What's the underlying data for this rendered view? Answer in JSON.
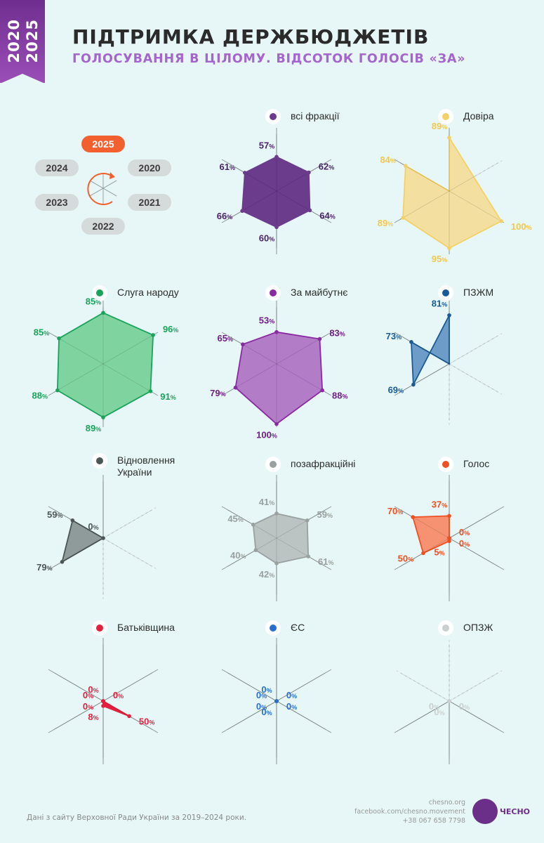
{
  "header": {
    "year_start": "2020",
    "year_end": "2025",
    "title": "ПІДТРИМКА ДЕРЖБЮДЖЕТІВ",
    "subtitle": "ГОЛОСУВАННЯ В ЦІЛОМУ. ВІДСОТОК ГОЛОСІВ «ЗА»"
  },
  "legend": {
    "years": [
      {
        "year": "2025",
        "highlight": true
      },
      {
        "year": "2020",
        "highlight": false
      },
      {
        "year": "2021",
        "highlight": false
      },
      {
        "year": "2022",
        "highlight": false
      },
      {
        "year": "2023",
        "highlight": false
      },
      {
        "year": "2024",
        "highlight": false
      }
    ],
    "highlight_color": "#f2602f",
    "pill_color": "#d5dada"
  },
  "chart_data": [
    {
      "type": "radar",
      "name": "всі фракції",
      "icon": "parliament-icon",
      "color": "#6b3b8c",
      "fill": "#6b3b8c",
      "fill_opacity": 1,
      "label_color": "#4a2468",
      "axes": [
        "2025",
        "2020",
        "2021",
        "2022",
        "2023",
        "2024"
      ],
      "values": [
        57,
        62,
        64,
        60,
        66,
        61
      ],
      "max": 100,
      "missing": []
    },
    {
      "type": "radar",
      "name": "Довіра",
      "icon": "feather-icon",
      "color": "#f4d166",
      "fill": "#f3dfa0",
      "fill_opacity": 1,
      "label_color": "#f0c850",
      "axes": [
        "2025",
        "2020",
        "2021",
        "2022",
        "2023",
        "2024"
      ],
      "values": [
        89,
        0,
        100,
        95,
        89,
        84
      ],
      "max": 100,
      "missing": [
        1
      ]
    },
    {
      "type": "radar",
      "name": "Слуга народу",
      "icon": "sluha-icon",
      "color": "#1aa35a",
      "fill": "#7fd39f",
      "fill_opacity": 1,
      "label_color": "#1aa35a",
      "axes": [
        "2025",
        "2020",
        "2021",
        "2022",
        "2023",
        "2024"
      ],
      "values": [
        85,
        96,
        91,
        89,
        88,
        85
      ],
      "max": 100,
      "missing": []
    },
    {
      "type": "radar",
      "name": "За майбутнє",
      "icon": "za-maibutnie-icon",
      "color": "#8a2aa3",
      "fill": "#b27cc7",
      "fill_opacity": 1,
      "label_color": "#6e1f86",
      "axes": [
        "2025",
        "2020",
        "2021",
        "2022",
        "2023",
        "2024"
      ],
      "values": [
        53,
        83,
        88,
        100,
        79,
        65
      ],
      "max": 100,
      "missing": []
    },
    {
      "type": "radar",
      "name": "ПЗЖМ",
      "icon": "pzhm-icon",
      "color": "#1a5a96",
      "fill": "#6e9cc9",
      "fill_opacity": 1,
      "label_color": "#1a5a96",
      "axes": [
        "2025",
        "2020",
        "2021",
        "2022",
        "2023",
        "2024"
      ],
      "values": [
        81,
        0,
        0,
        0,
        69,
        73
      ],
      "max": 100,
      "missing": [
        1,
        2,
        3
      ]
    },
    {
      "type": "radar",
      "name": "Відновлення України",
      "icon": "vu-icon",
      "color": "#4d5656",
      "fill": "#8f9a9a",
      "fill_opacity": 1,
      "label_color": "#4d5656",
      "axes": [
        "2025",
        "2020",
        "2021",
        "2022",
        "2023",
        "2024"
      ],
      "values": [
        0,
        0,
        0,
        0,
        79,
        59
      ],
      "max": 100,
      "missing": [
        1,
        2,
        3
      ]
    },
    {
      "type": "radar",
      "name": "позафракційні",
      "icon": "person-icon",
      "color": "#9aa0a0",
      "fill": "#bcc3c3",
      "fill_opacity": 1,
      "label_color": "#9aa0a0",
      "axes": [
        "2025",
        "2020",
        "2021",
        "2022",
        "2023",
        "2024"
      ],
      "values": [
        41,
        59,
        61,
        42,
        40,
        45
      ],
      "max": 100,
      "missing": []
    },
    {
      "type": "radar",
      "name": "Голос",
      "icon": "holos-icon",
      "color": "#ef5022",
      "fill": "#f69272",
      "fill_opacity": 1,
      "label_color": "#ef5022",
      "axes": [
        "2025",
        "2020",
        "2021",
        "2022",
        "2023",
        "2024"
      ],
      "values": [
        37,
        0,
        0,
        5,
        50,
        70
      ],
      "max": 100,
      "missing": []
    },
    {
      "type": "radar",
      "name": "Батьківщина",
      "icon": "heart-icon",
      "color": "#e3203d",
      "fill": "#e3203d",
      "fill_opacity": 1,
      "label_color": "#e3203d",
      "axes": [
        "2025",
        "2020",
        "2021",
        "2022",
        "2023",
        "2024"
      ],
      "values": [
        0,
        0,
        50,
        8,
        0,
        0
      ],
      "max": 100,
      "missing": []
    },
    {
      "type": "radar",
      "name": "ЄС",
      "icon": "es-icon",
      "color": "#2a6fd0",
      "fill": "#2a6fd0",
      "fill_opacity": 1,
      "label_color": "#2a6fd0",
      "axes": [
        "2025",
        "2020",
        "2021",
        "2022",
        "2023",
        "2024"
      ],
      "values": [
        0,
        0,
        0,
        0,
        0,
        0
      ],
      "max": 100,
      "missing": []
    },
    {
      "type": "radar",
      "name": "ОПЗЖ",
      "icon": "opzh-icon",
      "color": "#c9cfcf",
      "fill": "#c9cfcf",
      "fill_opacity": 1,
      "label_color": "#c9cfcf",
      "axes": [
        "2025",
        "2020",
        "2021",
        "2022",
        "2023",
        "2024"
      ],
      "values": [
        0,
        0,
        0,
        0,
        0,
        0
      ],
      "max": 100,
      "missing": [
        0,
        1,
        5
      ]
    }
  ],
  "footer": {
    "source": "Дані з сайту Верховної Ради України за 2019–2024 роки.",
    "site": "chesno.org",
    "facebook": "facebook.com/chesno.movement",
    "phone": "+38 067 658 7798",
    "logo_text": "ЧЕСНО"
  }
}
